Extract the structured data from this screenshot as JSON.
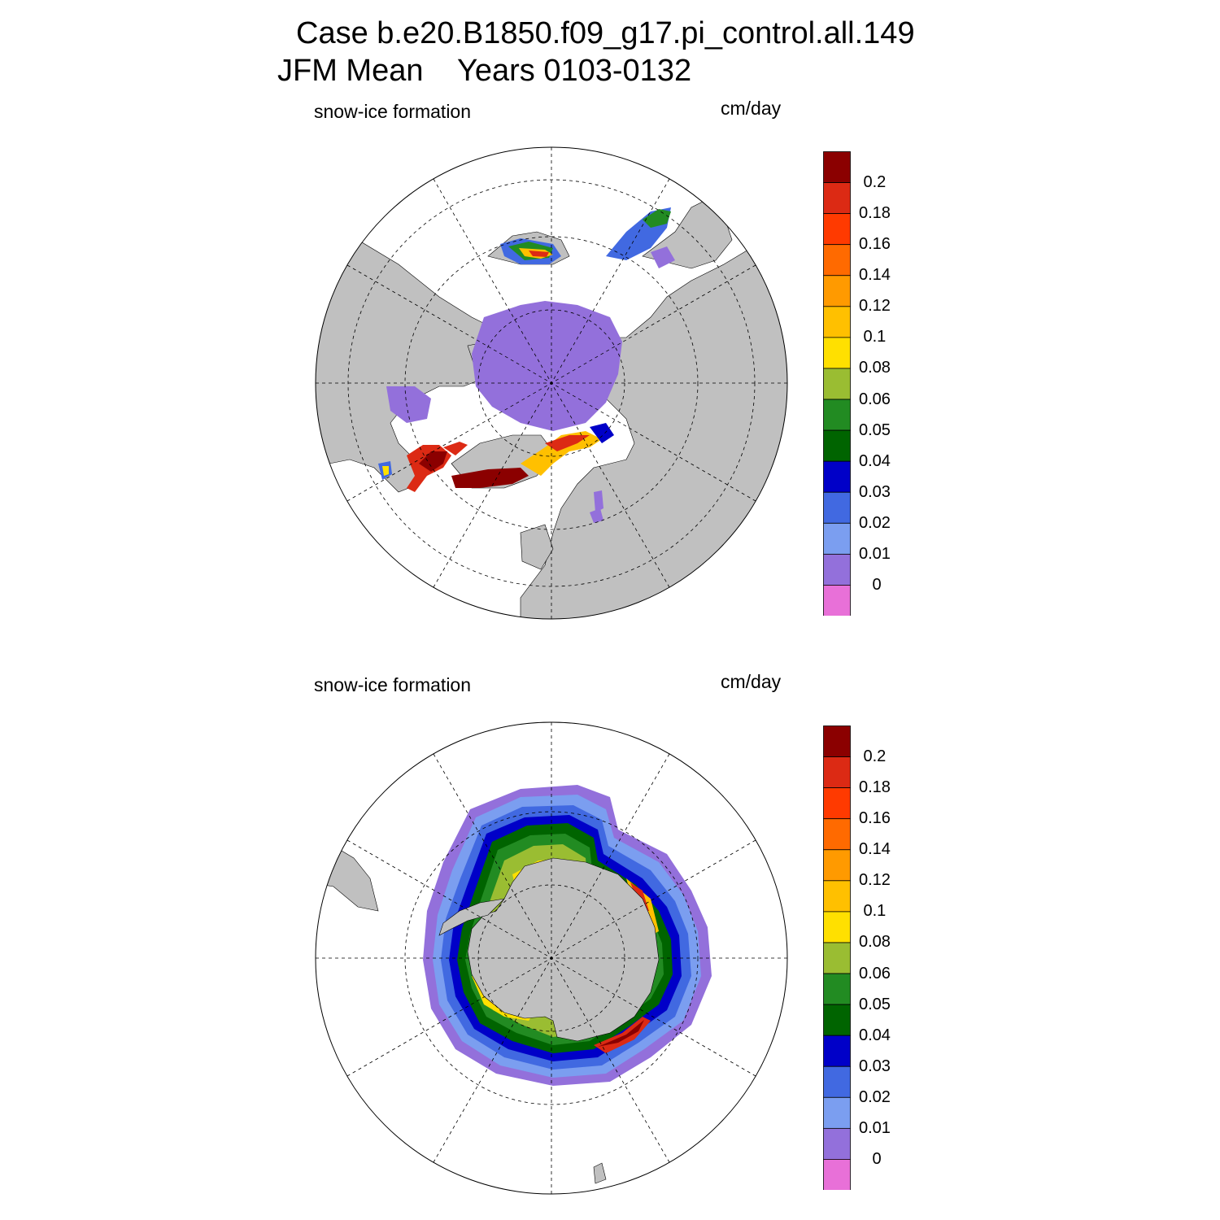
{
  "header": {
    "case_line": "Case b.e20.B1850.f09_g17.pi_control.all.149",
    "period_line": "JFM Mean    Years 0103-0132"
  },
  "panels": [
    {
      "hemisphere": "north",
      "variable_label": "snow-ice formation",
      "units_label": "cm/day"
    },
    {
      "hemisphere": "south",
      "variable_label": "snow-ice formation",
      "units_label": "cm/day"
    }
  ],
  "colorbar": {
    "colors": [
      "#e870d8",
      "#9370db",
      "#7b9ef0",
      "#4169e1",
      "#0000c8",
      "#006400",
      "#228b22",
      "#9abd32",
      "#ffe000",
      "#ffc000",
      "#ff9a00",
      "#ff6a00",
      "#ff3a00",
      "#dc2a14",
      "#8b0000"
    ],
    "tick_labels": [
      "0",
      "0.01",
      "0.02",
      "0.03",
      "0.04",
      "0.05",
      "0.06",
      "0.08",
      "0.1",
      "0.12",
      "0.14",
      "0.16",
      "0.18",
      "0.2"
    ]
  },
  "map_style": {
    "land_color": "#c0c0c0",
    "ocean_color": "#ffffff",
    "grid_style": "dashed"
  }
}
